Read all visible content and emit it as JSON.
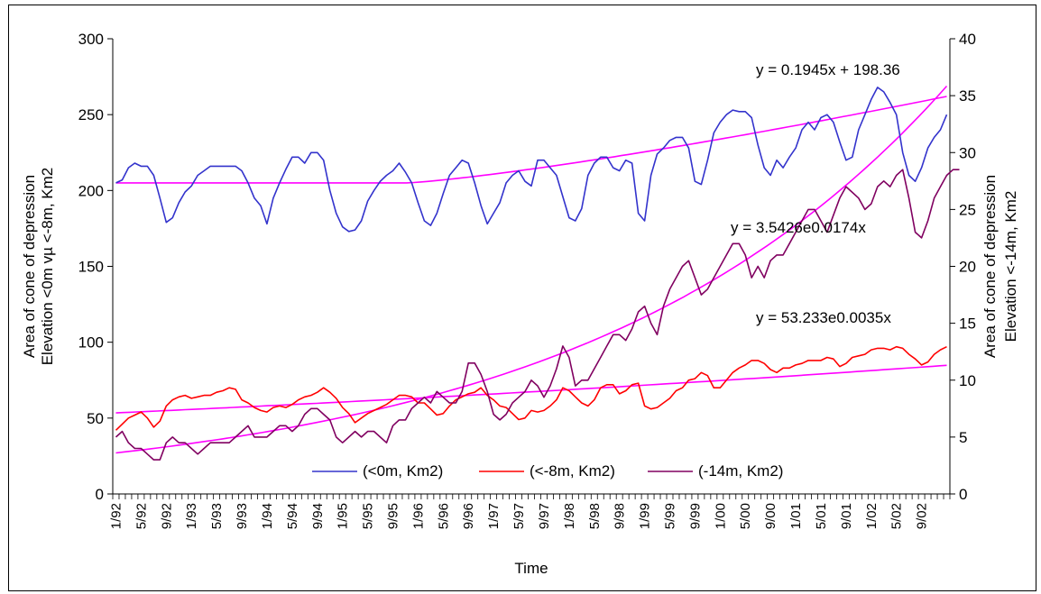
{
  "chart_data": {
    "type": "line",
    "xlabel": "Time",
    "ylabel_left": [
      "Area of cone of depression",
      "Elevation <0m vµ <-8m, Km2"
    ],
    "ylabel_right": [
      "Area of cone of depression",
      "Elevation <-14m, Km2"
    ],
    "ylim_left": [
      0,
      300
    ],
    "ylim_right": [
      0,
      40
    ],
    "yticks_left": [
      "0",
      "50",
      "100",
      "150",
      "200",
      "250",
      "300"
    ],
    "yticks_right": [
      "0",
      "5",
      "10",
      "15",
      "20",
      "25",
      "30",
      "35",
      "40"
    ],
    "x_tick_labels": [
      "1/92",
      "5/92",
      "9/92",
      "1/93",
      "5/93",
      "9/93",
      "1/94",
      "5/94",
      "9/94",
      "1/95",
      "5/95",
      "9/95",
      "1/96",
      "5/96",
      "9/96",
      "1/97",
      "5/97",
      "9/97",
      "1/98",
      "5/98",
      "9/98",
      "1/99",
      "5/99",
      "9/99",
      "1/00",
      "5/00",
      "9/00",
      "1/01",
      "5/01",
      "9/01",
      "1/02",
      "5/02",
      "9/02"
    ],
    "months_total": 133,
    "grid": false,
    "legend_position": "bottom",
    "colors": {
      "s0": "#3333cc",
      "s8": "#ff0000",
      "s14": "#800060",
      "trend": "#ff00ff"
    },
    "series": [
      {
        "name": "(<0m, Km2)",
        "axis": "left",
        "color": "#3333cc",
        "values": [
          205,
          207,
          215,
          218,
          216,
          216,
          210,
          195,
          179,
          182,
          192,
          199,
          203,
          210,
          213,
          216,
          216,
          216,
          216,
          216,
          213,
          205,
          195,
          190,
          178,
          195,
          205,
          214,
          222,
          222,
          218,
          225,
          225,
          220,
          200,
          185,
          176,
          173,
          174,
          180,
          193,
          200,
          206,
          210,
          213,
          218,
          212,
          205,
          192,
          180,
          177,
          185,
          198,
          210,
          215,
          220,
          218,
          205,
          190,
          178,
          185,
          192,
          205,
          210,
          213,
          206,
          203,
          220,
          220,
          215,
          210,
          196,
          182,
          180,
          188,
          210,
          218,
          222,
          222,
          215,
          213,
          220,
          218,
          185,
          180,
          210,
          224,
          228,
          233,
          235,
          235,
          228,
          206,
          204,
          220,
          238,
          245,
          250,
          253,
          252,
          252,
          248,
          230,
          215,
          210,
          220,
          215,
          222,
          228,
          240,
          245,
          240,
          248,
          250,
          245,
          232,
          220,
          222,
          240,
          250,
          260,
          268,
          265,
          258,
          250,
          225,
          210,
          206,
          215,
          228,
          235,
          240,
          250
        ]
      },
      {
        "name": "(<-8m, Km2)",
        "axis": "left",
        "color": "#ff0000",
        "values": [
          42,
          46,
          50,
          52,
          54,
          50,
          44,
          48,
          58,
          62,
          64,
          65,
          63,
          64,
          65,
          65,
          67,
          68,
          70,
          69,
          62,
          60,
          57,
          55,
          54,
          57,
          58,
          57,
          59,
          62,
          64,
          65,
          67,
          70,
          67,
          63,
          57,
          53,
          47,
          50,
          53,
          55,
          57,
          59,
          62,
          65,
          65,
          64,
          60,
          60,
          56,
          52,
          53,
          58,
          62,
          64,
          66,
          67,
          70,
          65,
          62,
          58,
          57,
          53,
          49,
          50,
          55,
          54,
          55,
          58,
          62,
          70,
          68,
          64,
          60,
          58,
          62,
          70,
          72,
          72,
          66,
          68,
          72,
          73,
          58,
          56,
          57,
          60,
          63,
          68,
          70,
          75,
          76,
          80,
          78,
          70,
          70,
          75,
          80,
          83,
          85,
          88,
          88,
          86,
          82,
          80,
          83,
          83,
          85,
          86,
          88,
          88,
          88,
          90,
          89,
          84,
          86,
          90,
          91,
          92,
          95,
          96,
          96,
          95,
          97,
          96,
          92,
          89,
          85,
          87,
          92,
          95,
          97
        ]
      },
      {
        "name": "(-14m, Km2)",
        "axis": "right",
        "color": "#800060",
        "values": [
          5,
          5.5,
          4.5,
          4,
          4,
          3.5,
          3,
          3,
          4.5,
          5,
          4.5,
          4.5,
          4,
          3.5,
          4,
          4.5,
          4.5,
          4.5,
          4.5,
          5,
          5.5,
          6,
          5,
          5,
          5,
          5.5,
          6,
          6,
          5.5,
          6,
          7,
          7.5,
          7.5,
          7,
          6.5,
          5,
          4.5,
          5,
          5.5,
          5,
          5.5,
          5.5,
          5,
          4.5,
          6,
          6.5,
          6.5,
          7.5,
          8,
          8.5,
          8,
          9,
          8.5,
          8,
          8,
          9,
          11.5,
          11.5,
          10.5,
          9,
          7,
          6.5,
          7,
          8,
          8.5,
          9,
          10,
          9.5,
          8.5,
          9.5,
          11,
          13,
          12,
          9.5,
          10,
          10,
          11,
          12,
          13,
          14,
          14,
          13.5,
          14.5,
          16,
          16.5,
          15,
          14,
          16.5,
          18,
          19,
          20,
          20.5,
          19,
          17.5,
          18,
          19,
          20,
          21,
          22,
          22,
          21,
          19,
          20,
          19,
          20.5,
          21,
          21,
          22,
          23,
          24,
          25,
          25,
          24,
          23,
          24.5,
          26,
          27,
          26.5,
          26,
          25,
          25.5,
          27,
          27.5,
          27,
          28,
          28.5,
          26,
          23,
          22.5,
          24,
          26,
          27,
          28,
          28.5,
          28.5
        ]
      }
    ],
    "trendlines": [
      {
        "label": "y = 0.1945x + 198.36",
        "axis": "left",
        "kind": "linear",
        "a": 198.36,
        "b": 0.1945,
        "note_fit_shape": "flat-then-rising",
        "start_value": 205
      },
      {
        "label": "y = 3.5426e0.0174x",
        "axis": "right",
        "kind": "exp",
        "a": 3.5426,
        "b": 0.0174
      },
      {
        "label": "y = 53.233e0.0035x",
        "axis": "left",
        "kind": "exp",
        "a": 53.233,
        "b": 0.0035
      }
    ]
  }
}
